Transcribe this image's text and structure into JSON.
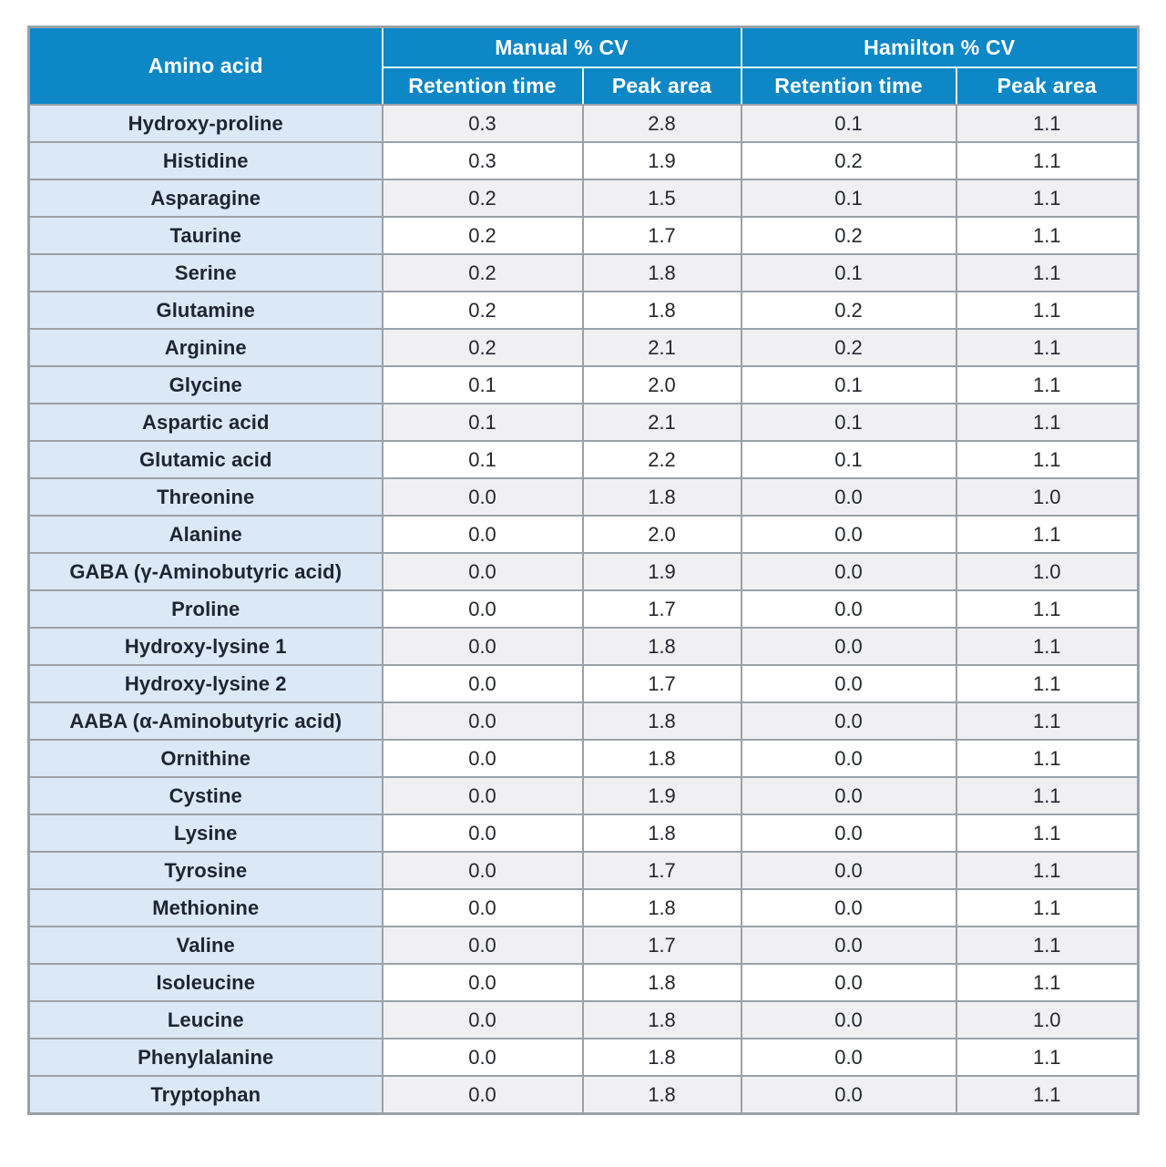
{
  "table": {
    "corner_header": "Amino acid",
    "groups": [
      {
        "label": "Manual % CV",
        "columns": [
          "Retention time",
          "Peak area"
        ]
      },
      {
        "label": "Hamilton % CV",
        "columns": [
          "Retention time",
          "Peak area"
        ]
      }
    ],
    "rows": [
      {
        "name": "Hydroxy-proline",
        "values": [
          "0.3",
          "2.8",
          "0.1",
          "1.1"
        ]
      },
      {
        "name": "Histidine",
        "values": [
          "0.3",
          "1.9",
          "0.2",
          "1.1"
        ]
      },
      {
        "name": "Asparagine",
        "values": [
          "0.2",
          "1.5",
          "0.1",
          "1.1"
        ]
      },
      {
        "name": "Taurine",
        "values": [
          "0.2",
          "1.7",
          "0.2",
          "1.1"
        ]
      },
      {
        "name": "Serine",
        "values": [
          "0.2",
          "1.8",
          "0.1",
          "1.1"
        ]
      },
      {
        "name": "Glutamine",
        "values": [
          "0.2",
          "1.8",
          "0.2",
          "1.1"
        ]
      },
      {
        "name": "Arginine",
        "values": [
          "0.2",
          "2.1",
          "0.2",
          "1.1"
        ]
      },
      {
        "name": "Glycine",
        "values": [
          "0.1",
          "2.0",
          "0.1",
          "1.1"
        ]
      },
      {
        "name": "Aspartic acid",
        "values": [
          "0.1",
          "2.1",
          "0.1",
          "1.1"
        ]
      },
      {
        "name": "Glutamic acid",
        "values": [
          "0.1",
          "2.2",
          "0.1",
          "1.1"
        ]
      },
      {
        "name": "Threonine",
        "values": [
          "0.0",
          "1.8",
          "0.0",
          "1.0"
        ]
      },
      {
        "name": "Alanine",
        "values": [
          "0.0",
          "2.0",
          "0.0",
          "1.1"
        ]
      },
      {
        "name": "GABA (γ-Aminobutyric acid)",
        "values": [
          "0.0",
          "1.9",
          "0.0",
          "1.0"
        ]
      },
      {
        "name": "Proline",
        "values": [
          "0.0",
          "1.7",
          "0.0",
          "1.1"
        ]
      },
      {
        "name": "Hydroxy-lysine 1",
        "values": [
          "0.0",
          "1.8",
          "0.0",
          "1.1"
        ]
      },
      {
        "name": "Hydroxy-lysine 2",
        "values": [
          "0.0",
          "1.7",
          "0.0",
          "1.1"
        ]
      },
      {
        "name": "AABA (α-Aminobutyric acid)",
        "values": [
          "0.0",
          "1.8",
          "0.0",
          "1.1"
        ]
      },
      {
        "name": "Ornithine",
        "values": [
          "0.0",
          "1.8",
          "0.0",
          "1.1"
        ]
      },
      {
        "name": "Cystine",
        "values": [
          "0.0",
          "1.9",
          "0.0",
          "1.1"
        ]
      },
      {
        "name": "Lysine",
        "values": [
          "0.0",
          "1.8",
          "0.0",
          "1.1"
        ]
      },
      {
        "name": "Tyrosine",
        "values": [
          "0.0",
          "1.7",
          "0.0",
          "1.1"
        ]
      },
      {
        "name": "Methionine",
        "values": [
          "0.0",
          "1.8",
          "0.0",
          "1.1"
        ]
      },
      {
        "name": "Valine",
        "values": [
          "0.0",
          "1.7",
          "0.0",
          "1.1"
        ]
      },
      {
        "name": "Isoleucine",
        "values": [
          "0.0",
          "1.8",
          "0.0",
          "1.1"
        ]
      },
      {
        "name": "Leucine",
        "values": [
          "0.0",
          "1.8",
          "0.0",
          "1.0"
        ]
      },
      {
        "name": "Phenylalanine",
        "values": [
          "0.0",
          "1.8",
          "0.0",
          "1.1"
        ]
      },
      {
        "name": "Tryptophan",
        "values": [
          "0.0",
          "1.8",
          "0.0",
          "1.1"
        ]
      }
    ]
  },
  "colors": {
    "header_bg": "#0d87c6",
    "header_text": "#ffffff",
    "header_divider": "#e9f5fb",
    "amino_col_bg": "#dbe8f5",
    "row_alt_bg": "#f0f0f3",
    "row_bg": "#ffffff",
    "grid_border": "#9ba1a8",
    "name_text": "#1d2531",
    "value_text": "#24272e"
  }
}
